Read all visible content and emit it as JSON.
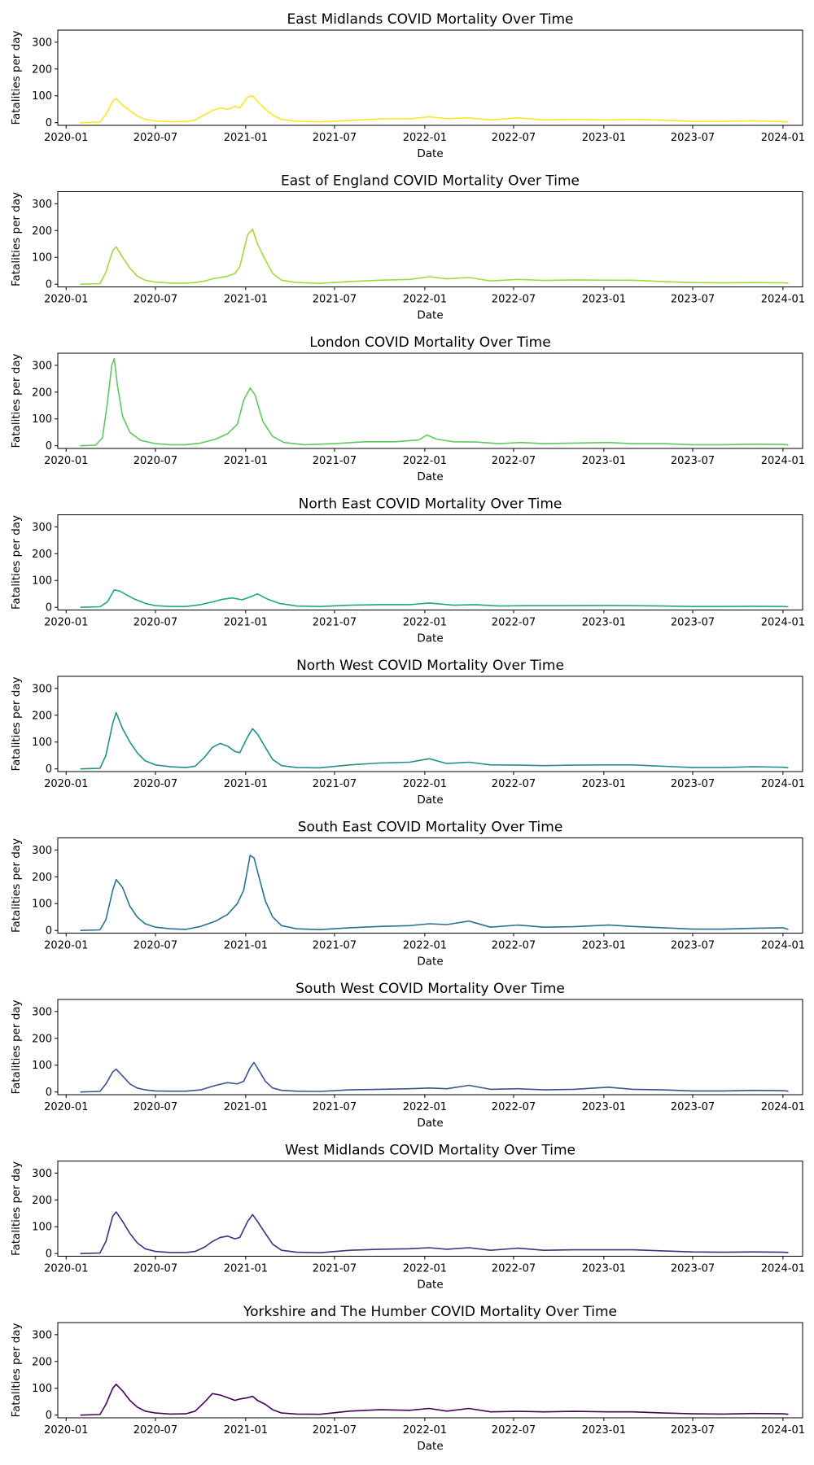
{
  "chart_data": [
    {
      "type": "line",
      "title": "East Midlands COVID Mortality Over Time",
      "xlabel": "Date",
      "ylabel": "Fatalities per day",
      "color": "#fde725",
      "xticks": [
        "2020-01",
        "2020-07",
        "2021-01",
        "2021-07",
        "2022-01",
        "2022-07",
        "2023-01",
        "2023-07",
        "2024-01"
      ],
      "yticks": [
        "0",
        "100",
        "200",
        "300"
      ],
      "ylim": [
        -10,
        345
      ],
      "xlim": [
        "2019-12-15",
        "2024-02-10"
      ],
      "grid": false,
      "x": [
        "2020-01-30",
        "2020-03-10",
        "2020-03-22",
        "2020-04-05",
        "2020-04-12",
        "2020-04-25",
        "2020-05-10",
        "2020-05-25",
        "2020-06-10",
        "2020-07-01",
        "2020-08-01",
        "2020-09-01",
        "2020-09-20",
        "2020-10-10",
        "2020-10-25",
        "2020-11-10",
        "2020-11-25",
        "2020-12-10",
        "2020-12-20",
        "2021-01-05",
        "2021-01-15",
        "2021-01-25",
        "2021-02-10",
        "2021-02-25",
        "2021-03-15",
        "2021-04-15",
        "2021-06-01",
        "2021-08-01",
        "2021-10-01",
        "2021-12-01",
        "2022-01-10",
        "2022-02-15",
        "2022-04-01",
        "2022-05-15",
        "2022-07-10",
        "2022-09-01",
        "2022-11-01",
        "2023-01-10",
        "2023-03-01",
        "2023-05-01",
        "2023-07-01",
        "2023-09-01",
        "2023-11-01",
        "2024-01-01",
        "2024-01-12"
      ],
      "y": [
        0,
        2,
        30,
        80,
        90,
        65,
        45,
        25,
        12,
        6,
        4,
        4,
        10,
        30,
        45,
        55,
        50,
        60,
        55,
        95,
        100,
        80,
        50,
        28,
        12,
        5,
        3,
        8,
        14,
        14,
        22,
        15,
        18,
        10,
        18,
        10,
        12,
        10,
        12,
        9,
        5,
        5,
        7,
        4,
        3
      ]
    },
    {
      "type": "line",
      "title": "East of England COVID Mortality Over Time",
      "xlabel": "Date",
      "ylabel": "Fatalities per day",
      "color": "#a0da39",
      "xticks": [
        "2020-01",
        "2020-07",
        "2021-01",
        "2021-07",
        "2022-01",
        "2022-07",
        "2023-01",
        "2023-07",
        "2024-01"
      ],
      "yticks": [
        "0",
        "100",
        "200",
        "300"
      ],
      "ylim": [
        -10,
        345
      ],
      "xlim": [
        "2019-12-15",
        "2024-02-10"
      ],
      "grid": false,
      "x": [
        "2020-01-30",
        "2020-03-10",
        "2020-03-22",
        "2020-04-05",
        "2020-04-12",
        "2020-04-25",
        "2020-05-10",
        "2020-05-25",
        "2020-06-10",
        "2020-07-01",
        "2020-08-01",
        "2020-09-01",
        "2020-09-20",
        "2020-10-10",
        "2020-10-25",
        "2020-11-10",
        "2020-11-25",
        "2020-12-10",
        "2020-12-20",
        "2021-01-05",
        "2021-01-15",
        "2021-01-25",
        "2021-02-10",
        "2021-02-25",
        "2021-03-15",
        "2021-04-15",
        "2021-06-01",
        "2021-08-01",
        "2021-10-01",
        "2021-12-01",
        "2022-01-10",
        "2022-02-15",
        "2022-04-01",
        "2022-05-15",
        "2022-07-10",
        "2022-09-01",
        "2022-11-01",
        "2023-01-10",
        "2023-03-01",
        "2023-05-01",
        "2023-07-01",
        "2023-09-01",
        "2023-11-01",
        "2024-01-01",
        "2024-01-12"
      ],
      "y": [
        0,
        2,
        45,
        125,
        140,
        100,
        60,
        30,
        15,
        8,
        4,
        4,
        6,
        12,
        20,
        25,
        30,
        40,
        65,
        185,
        205,
        150,
        90,
        40,
        15,
        6,
        3,
        10,
        15,
        18,
        28,
        20,
        25,
        12,
        18,
        14,
        16,
        15,
        15,
        10,
        6,
        5,
        6,
        5,
        4
      ]
    },
    {
      "type": "line",
      "title": "London COVID Mortality Over Time",
      "xlabel": "Date",
      "ylabel": "Fatalities per day",
      "color": "#5ec962",
      "xticks": [
        "2020-01",
        "2020-07",
        "2021-01",
        "2021-07",
        "2022-01",
        "2022-07",
        "2023-01",
        "2023-07",
        "2024-01"
      ],
      "yticks": [
        "0",
        "100",
        "200",
        "300"
      ],
      "ylim": [
        -10,
        345
      ],
      "xlim": [
        "2019-12-15",
        "2024-02-10"
      ],
      "grid": false,
      "x": [
        "2020-01-30",
        "2020-03-01",
        "2020-03-15",
        "2020-03-25",
        "2020-04-03",
        "2020-04-08",
        "2020-04-15",
        "2020-04-25",
        "2020-05-10",
        "2020-06-01",
        "2020-07-01",
        "2020-08-01",
        "2020-09-01",
        "2020-10-01",
        "2020-11-01",
        "2020-11-25",
        "2020-12-15",
        "2020-12-28",
        "2021-01-10",
        "2021-01-20",
        "2021-02-05",
        "2021-02-25",
        "2021-03-20",
        "2021-05-01",
        "2021-07-01",
        "2021-09-01",
        "2021-11-01",
        "2021-12-20",
        "2022-01-05",
        "2022-01-25",
        "2022-03-01",
        "2022-04-15",
        "2022-06-01",
        "2022-07-15",
        "2022-09-01",
        "2022-11-01",
        "2023-01-10",
        "2023-03-01",
        "2023-05-01",
        "2023-07-01",
        "2023-09-01",
        "2023-11-01",
        "2024-01-01",
        "2024-01-12"
      ],
      "y": [
        0,
        2,
        30,
        160,
        300,
        325,
        220,
        110,
        50,
        20,
        8,
        4,
        4,
        10,
        25,
        45,
        80,
        170,
        215,
        190,
        90,
        35,
        12,
        4,
        8,
        15,
        15,
        22,
        40,
        25,
        15,
        14,
        8,
        12,
        8,
        10,
        12,
        8,
        8,
        4,
        4,
        6,
        5,
        3
      ]
    },
    {
      "type": "line",
      "title": "North East COVID Mortality Over Time",
      "xlabel": "Date",
      "ylabel": "Fatalities per day",
      "color": "#21a585",
      "xticks": [
        "2020-01",
        "2020-07",
        "2021-01",
        "2021-07",
        "2022-01",
        "2022-07",
        "2023-01",
        "2023-07",
        "2024-01"
      ],
      "yticks": [
        "0",
        "100",
        "200",
        "300"
      ],
      "ylim": [
        -10,
        345
      ],
      "xlim": [
        "2019-12-15",
        "2024-02-10"
      ],
      "grid": false,
      "x": [
        "2020-01-30",
        "2020-03-10",
        "2020-03-25",
        "2020-04-08",
        "2020-04-20",
        "2020-05-05",
        "2020-05-20",
        "2020-06-10",
        "2020-07-01",
        "2020-08-01",
        "2020-09-01",
        "2020-10-01",
        "2020-10-25",
        "2020-11-15",
        "2020-12-05",
        "2020-12-25",
        "2021-01-12",
        "2021-01-25",
        "2021-02-15",
        "2021-03-10",
        "2021-04-15",
        "2021-06-01",
        "2021-08-01",
        "2021-10-01",
        "2021-12-01",
        "2022-01-10",
        "2022-03-01",
        "2022-04-15",
        "2022-06-01",
        "2022-08-01",
        "2022-10-01",
        "2023-01-10",
        "2023-03-01",
        "2023-05-01",
        "2023-07-01",
        "2023-09-01",
        "2023-11-01",
        "2024-01-01",
        "2024-01-12"
      ],
      "y": [
        0,
        2,
        20,
        65,
        60,
        45,
        30,
        15,
        6,
        3,
        3,
        10,
        20,
        30,
        35,
        28,
        40,
        50,
        30,
        15,
        5,
        3,
        8,
        10,
        10,
        16,
        8,
        10,
        5,
        6,
        6,
        7,
        6,
        5,
        3,
        3,
        4,
        3,
        2
      ]
    },
    {
      "type": "line",
      "title": "North West COVID Mortality Over Time",
      "xlabel": "Date",
      "ylabel": "Fatalities per day",
      "color": "#219089",
      "xticks": [
        "2020-01",
        "2020-07",
        "2021-01",
        "2021-07",
        "2022-01",
        "2022-07",
        "2023-01",
        "2023-07",
        "2024-01"
      ],
      "yticks": [
        "0",
        "100",
        "200",
        "300"
      ],
      "ylim": [
        -10,
        345
      ],
      "xlim": [
        "2019-12-15",
        "2024-02-10"
      ],
      "grid": false,
      "x": [
        "2020-01-30",
        "2020-03-10",
        "2020-03-22",
        "2020-04-05",
        "2020-04-12",
        "2020-04-25",
        "2020-05-10",
        "2020-05-25",
        "2020-06-10",
        "2020-07-01",
        "2020-08-01",
        "2020-09-01",
        "2020-09-20",
        "2020-10-10",
        "2020-10-25",
        "2020-11-10",
        "2020-11-25",
        "2020-12-10",
        "2020-12-20",
        "2021-01-05",
        "2021-01-15",
        "2021-01-25",
        "2021-02-10",
        "2021-02-25",
        "2021-03-15",
        "2021-04-15",
        "2021-06-01",
        "2021-08-01",
        "2021-10-01",
        "2021-12-01",
        "2022-01-10",
        "2022-02-15",
        "2022-04-01",
        "2022-05-15",
        "2022-07-10",
        "2022-09-01",
        "2022-11-01",
        "2023-01-10",
        "2023-03-01",
        "2023-05-01",
        "2023-07-01",
        "2023-09-01",
        "2023-11-01",
        "2024-01-01",
        "2024-01-12"
      ],
      "y": [
        0,
        2,
        50,
        170,
        210,
        150,
        100,
        60,
        30,
        15,
        8,
        5,
        10,
        45,
        80,
        95,
        85,
        65,
        60,
        120,
        150,
        130,
        80,
        35,
        12,
        5,
        4,
        15,
        22,
        25,
        38,
        20,
        25,
        15,
        14,
        12,
        14,
        15,
        15,
        10,
        5,
        5,
        8,
        6,
        4
      ]
    },
    {
      "type": "line",
      "title": "South East COVID Mortality Over Time",
      "xlabel": "Date",
      "ylabel": "Fatalities per day",
      "color": "#2c718e",
      "xticks": [
        "2020-01",
        "2020-07",
        "2021-01",
        "2021-07",
        "2022-01",
        "2022-07",
        "2023-01",
        "2023-07",
        "2024-01"
      ],
      "yticks": [
        "0",
        "100",
        "200",
        "300"
      ],
      "ylim": [
        -10,
        345
      ],
      "xlim": [
        "2019-12-15",
        "2024-02-10"
      ],
      "grid": false,
      "x": [
        "2020-01-30",
        "2020-03-10",
        "2020-03-22",
        "2020-04-05",
        "2020-04-12",
        "2020-04-25",
        "2020-05-10",
        "2020-05-25",
        "2020-06-10",
        "2020-07-01",
        "2020-08-01",
        "2020-09-01",
        "2020-10-01",
        "2020-11-01",
        "2020-11-25",
        "2020-12-15",
        "2020-12-28",
        "2021-01-10",
        "2021-01-18",
        "2021-01-28",
        "2021-02-10",
        "2021-02-25",
        "2021-03-15",
        "2021-04-15",
        "2021-06-01",
        "2021-08-01",
        "2021-10-01",
        "2021-12-01",
        "2022-01-10",
        "2022-02-15",
        "2022-04-01",
        "2022-05-15",
        "2022-07-10",
        "2022-09-01",
        "2022-11-01",
        "2023-01-10",
        "2023-03-01",
        "2023-05-01",
        "2023-07-01",
        "2023-09-01",
        "2023-11-01",
        "2024-01-01",
        "2024-01-12"
      ],
      "y": [
        0,
        2,
        40,
        150,
        190,
        160,
        90,
        50,
        25,
        12,
        6,
        4,
        15,
        35,
        60,
        100,
        150,
        280,
        270,
        200,
        110,
        50,
        18,
        6,
        3,
        10,
        15,
        18,
        25,
        22,
        35,
        12,
        20,
        12,
        14,
        20,
        15,
        10,
        5,
        5,
        8,
        10,
        4
      ]
    },
    {
      "type": "line",
      "title": "South West COVID Mortality Over Time",
      "xlabel": "Date",
      "ylabel": "Fatalities per day",
      "color": "#3b528b",
      "xticks": [
        "2020-01",
        "2020-07",
        "2021-01",
        "2021-07",
        "2022-01",
        "2022-07",
        "2023-01",
        "2023-07",
        "2024-01"
      ],
      "yticks": [
        "0",
        "100",
        "200",
        "300"
      ],
      "ylim": [
        -10,
        345
      ],
      "xlim": [
        "2019-12-15",
        "2024-02-10"
      ],
      "grid": false,
      "x": [
        "2020-01-30",
        "2020-03-10",
        "2020-03-22",
        "2020-04-05",
        "2020-04-12",
        "2020-04-25",
        "2020-05-10",
        "2020-05-25",
        "2020-06-10",
        "2020-07-01",
        "2020-08-01",
        "2020-09-01",
        "2020-10-01",
        "2020-11-01",
        "2020-11-25",
        "2020-12-15",
        "2020-12-28",
        "2021-01-10",
        "2021-01-18",
        "2021-01-28",
        "2021-02-10",
        "2021-02-25",
        "2021-03-15",
        "2021-04-15",
        "2021-06-01",
        "2021-08-01",
        "2021-10-01",
        "2021-12-01",
        "2022-01-10",
        "2022-02-15",
        "2022-04-01",
        "2022-05-15",
        "2022-07-10",
        "2022-09-01",
        "2022-11-01",
        "2023-01-10",
        "2023-03-01",
        "2023-05-01",
        "2023-07-01",
        "2023-09-01",
        "2023-11-01",
        "2024-01-01",
        "2024-01-12"
      ],
      "y": [
        0,
        2,
        30,
        75,
        85,
        60,
        30,
        15,
        8,
        4,
        3,
        3,
        8,
        25,
        35,
        30,
        40,
        90,
        110,
        80,
        40,
        15,
        6,
        3,
        2,
        8,
        10,
        12,
        15,
        12,
        25,
        10,
        12,
        8,
        10,
        18,
        10,
        8,
        4,
        4,
        6,
        5,
        3
      ]
    },
    {
      "type": "line",
      "title": "West Midlands COVID Mortality Over Time",
      "xlabel": "Date",
      "ylabel": "Fatalities per day",
      "color": "#472d7b",
      "xticks": [
        "2020-01",
        "2020-07",
        "2021-01",
        "2021-07",
        "2022-01",
        "2022-07",
        "2023-01",
        "2023-07",
        "2024-01"
      ],
      "yticks": [
        "0",
        "100",
        "200",
        "300"
      ],
      "ylim": [
        -10,
        345
      ],
      "xlim": [
        "2019-12-15",
        "2024-02-10"
      ],
      "grid": false,
      "x": [
        "2020-01-30",
        "2020-03-10",
        "2020-03-22",
        "2020-04-05",
        "2020-04-12",
        "2020-04-25",
        "2020-05-10",
        "2020-05-25",
        "2020-06-10",
        "2020-07-01",
        "2020-08-01",
        "2020-09-01",
        "2020-09-20",
        "2020-10-10",
        "2020-10-25",
        "2020-11-10",
        "2020-11-25",
        "2020-12-10",
        "2020-12-20",
        "2021-01-05",
        "2021-01-15",
        "2021-01-25",
        "2021-02-10",
        "2021-02-25",
        "2021-03-15",
        "2021-04-15",
        "2021-06-01",
        "2021-08-01",
        "2021-10-01",
        "2021-12-01",
        "2022-01-10",
        "2022-02-15",
        "2022-04-01",
        "2022-05-15",
        "2022-07-10",
        "2022-09-01",
        "2022-11-01",
        "2023-01-10",
        "2023-03-01",
        "2023-05-01",
        "2023-07-01",
        "2023-09-01",
        "2023-11-01",
        "2024-01-01",
        "2024-01-12"
      ],
      "y": [
        0,
        2,
        45,
        140,
        155,
        120,
        75,
        40,
        18,
        8,
        4,
        4,
        8,
        25,
        45,
        60,
        65,
        55,
        60,
        120,
        145,
        120,
        75,
        35,
        12,
        5,
        3,
        12,
        16,
        18,
        22,
        16,
        22,
        12,
        20,
        12,
        14,
        14,
        14,
        10,
        6,
        5,
        6,
        5,
        4
      ]
    },
    {
      "type": "line",
      "title": "Yorkshire and The Humber COVID Mortality Over Time",
      "xlabel": "Date",
      "ylabel": "Fatalities per day",
      "color": "#440154",
      "xticks": [
        "2020-01",
        "2020-07",
        "2021-01",
        "2021-07",
        "2022-01",
        "2022-07",
        "2023-01",
        "2023-07",
        "2024-01"
      ],
      "yticks": [
        "0",
        "100",
        "200",
        "300"
      ],
      "ylim": [
        -10,
        345
      ],
      "xlim": [
        "2019-12-15",
        "2024-02-10"
      ],
      "grid": false,
      "x": [
        "2020-01-30",
        "2020-03-10",
        "2020-03-22",
        "2020-04-05",
        "2020-04-12",
        "2020-04-25",
        "2020-05-10",
        "2020-05-25",
        "2020-06-10",
        "2020-07-01",
        "2020-08-01",
        "2020-09-01",
        "2020-09-20",
        "2020-10-10",
        "2020-10-25",
        "2020-11-10",
        "2020-11-25",
        "2020-12-10",
        "2020-12-20",
        "2021-01-05",
        "2021-01-15",
        "2021-01-25",
        "2021-02-10",
        "2021-02-25",
        "2021-03-15",
        "2021-04-15",
        "2021-06-01",
        "2021-08-01",
        "2021-10-01",
        "2021-12-01",
        "2022-01-10",
        "2022-02-15",
        "2022-04-01",
        "2022-05-15",
        "2022-07-10",
        "2022-09-01",
        "2022-11-01",
        "2023-01-10",
        "2023-03-01",
        "2023-05-01",
        "2023-07-01",
        "2023-09-01",
        "2023-11-01",
        "2024-01-01",
        "2024-01-12"
      ],
      "y": [
        0,
        2,
        40,
        100,
        115,
        90,
        55,
        30,
        15,
        8,
        4,
        5,
        15,
        50,
        80,
        75,
        65,
        55,
        60,
        65,
        70,
        55,
        40,
        20,
        8,
        4,
        3,
        15,
        20,
        18,
        25,
        15,
        25,
        12,
        14,
        12,
        14,
        12,
        12,
        8,
        5,
        4,
        6,
        5,
        3
      ]
    }
  ]
}
